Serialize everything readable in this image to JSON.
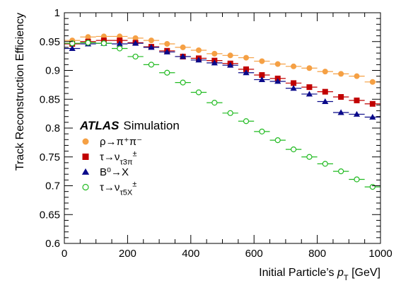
{
  "chart_data": {
    "type": "scatter",
    "xlabel": "Initial Particle’s",
    "xlabel_var": "p",
    "xlabel_sub": "T",
    "xlabel_unit": " [GeV]",
    "ylabel": "Track Reconstruction Efficiency",
    "xlim": [
      0,
      1000
    ],
    "ylim": [
      0.6,
      1.0
    ],
    "grid": false,
    "legend_position": "left",
    "x_ticks": [
      "0",
      "200",
      "400",
      "600",
      "800",
      "1000"
    ],
    "y_ticks": [
      "0.6",
      "0.65",
      "0.7",
      "0.75",
      "0.8",
      "0.85",
      "0.9",
      "0.95",
      "1"
    ],
    "annotation": {
      "bold": "ATLAS",
      "text": "Simulation"
    },
    "series": [
      {
        "name": "ρ→π⁺π⁻",
        "color": "#f5a044",
        "marker": "circle-filled",
        "x": [
          25,
          75,
          125,
          175,
          225,
          275,
          325,
          375,
          425,
          475,
          525,
          575,
          625,
          675,
          725,
          775,
          825,
          875,
          925,
          975
        ],
        "y": [
          0.952,
          0.958,
          0.959,
          0.959,
          0.956,
          0.952,
          0.946,
          0.94,
          0.935,
          0.929,
          0.926,
          0.922,
          0.916,
          0.911,
          0.907,
          0.904,
          0.898,
          0.894,
          0.89,
          0.88
        ],
        "xerr": 25
      },
      {
        "name": "τ→ν_τ3π^±",
        "color": "#c10000",
        "marker": "square-filled",
        "x": [
          25,
          75,
          125,
          175,
          225,
          275,
          325,
          375,
          425,
          475,
          525,
          575,
          625,
          675,
          725,
          775,
          825,
          875,
          925,
          975
        ],
        "y": [
          0.946,
          0.95,
          0.952,
          0.952,
          0.948,
          0.941,
          0.934,
          0.924,
          0.921,
          0.917,
          0.912,
          0.902,
          0.892,
          0.886,
          0.878,
          0.871,
          0.863,
          0.854,
          0.848,
          0.842
        ],
        "xerr": 25
      },
      {
        "name": "B⁰→X",
        "color": "#0a0a8a",
        "marker": "triangle-filled",
        "x": [
          25,
          75,
          125,
          175,
          225,
          275,
          325,
          375,
          425,
          475,
          525,
          575,
          625,
          675,
          725,
          775,
          825,
          875,
          925,
          975
        ],
        "y": [
          0.938,
          0.946,
          0.947,
          0.946,
          0.947,
          0.94,
          0.932,
          0.924,
          0.918,
          0.913,
          0.909,
          0.896,
          0.884,
          0.881,
          0.869,
          0.859,
          0.846,
          0.827,
          0.824,
          0.819
        ],
        "xerr": 25
      },
      {
        "name": "τ→ν_τ5X^±",
        "color": "#22bb22",
        "marker": "circle-open",
        "x": [
          25,
          75,
          125,
          175,
          225,
          275,
          325,
          375,
          425,
          475,
          525,
          575,
          625,
          675,
          725,
          775,
          825,
          875,
          925,
          975
        ],
        "y": [
          0.947,
          0.948,
          0.947,
          0.938,
          0.924,
          0.91,
          0.896,
          0.879,
          0.862,
          0.844,
          0.826,
          0.812,
          0.794,
          0.779,
          0.763,
          0.75,
          0.738,
          0.725,
          0.711,
          0.698
        ],
        "xerr": 25
      }
    ]
  }
}
